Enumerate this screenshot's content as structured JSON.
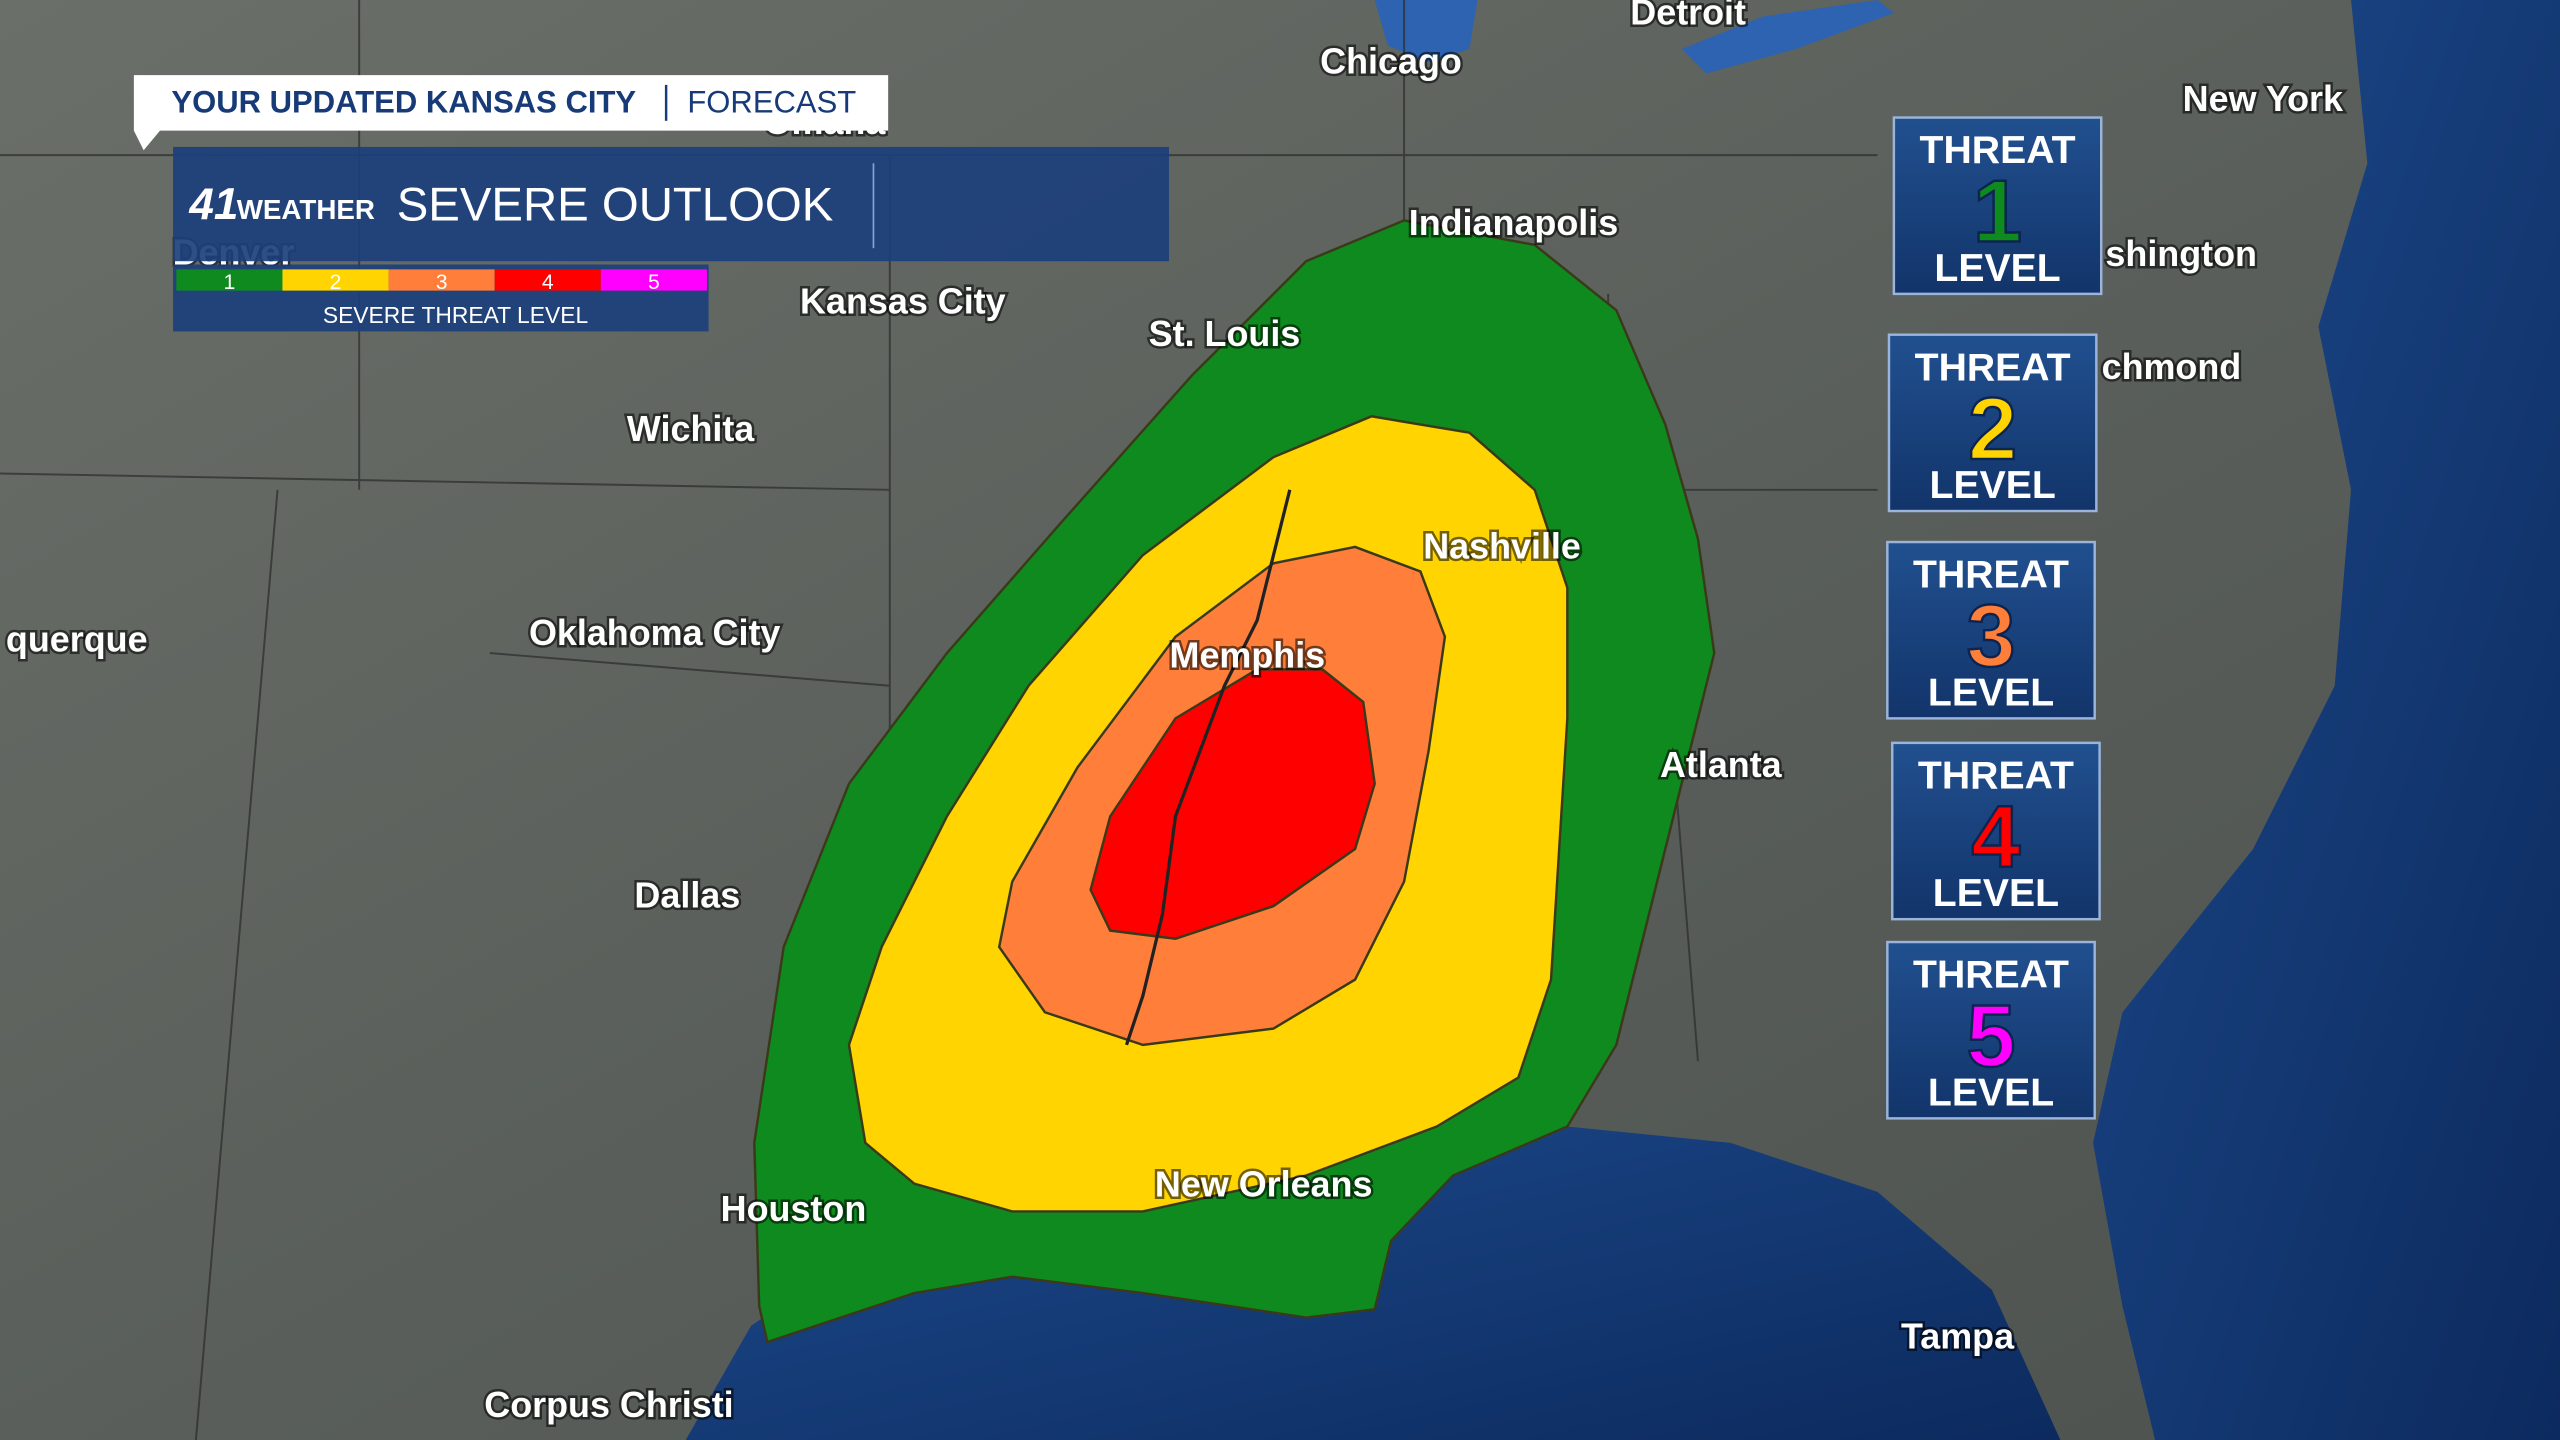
{
  "header": {
    "banner": "YOUR UPDATED KANSAS CITY",
    "section": "FORECAST",
    "logo_number": "41",
    "logo_word": "WEATHER",
    "title": "SEVERE OUTLOOK"
  },
  "legend": {
    "levels": [
      "1",
      "2",
      "3",
      "4",
      "5"
    ],
    "caption": "SEVERE THREAT LEVEL"
  },
  "cities": [
    "Chicago",
    "Detroit",
    "New York",
    "Indianapolis",
    "Omaha",
    "Denver",
    "Kansas City",
    "St. Louis",
    "Wichita",
    "Nashville",
    "querque",
    "Oklahoma City",
    "Memphis",
    "Atlanta",
    "Dallas",
    "Houston",
    "New Orleans",
    "Corpus Christi",
    "Tampa",
    "shington",
    "chmond"
  ],
  "cards": [
    {
      "top": "THREAT",
      "level": "1",
      "bottom": "LEVEL"
    },
    {
      "top": "THREAT",
      "level": "2",
      "bottom": "LEVEL"
    },
    {
      "top": "THREAT",
      "level": "3",
      "bottom": "LEVEL"
    },
    {
      "top": "THREAT",
      "level": "4",
      "bottom": "LEVEL"
    },
    {
      "top": "THREAT",
      "level": "5",
      "bottom": "LEVEL"
    }
  ]
}
